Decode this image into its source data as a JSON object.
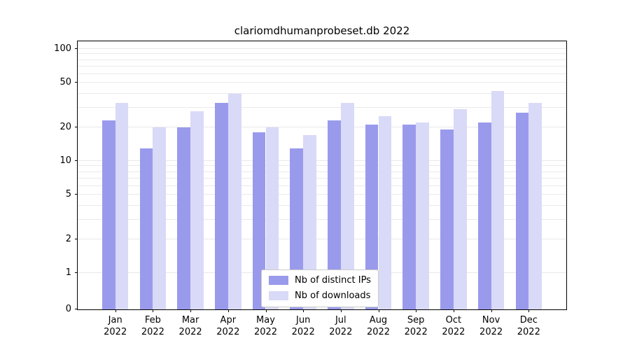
{
  "chart_data": {
    "type": "bar",
    "title": "clariomdhumanprobeset.db 2022",
    "categories": [
      "Jan",
      "Feb",
      "Mar",
      "Apr",
      "May",
      "Jun",
      "Jul",
      "Aug",
      "Sep",
      "Oct",
      "Nov",
      "Dec"
    ],
    "year": "2022",
    "series": [
      {
        "name": "Nb of distinct IPs",
        "color": "#9a9aec",
        "values": [
          23,
          13,
          20,
          33,
          18,
          13,
          23,
          21,
          21,
          19,
          22,
          27
        ]
      },
      {
        "name": "Nb of downloads",
        "color": "#d9d9f8",
        "values": [
          33,
          20,
          28,
          40,
          20,
          17,
          33,
          25,
          22,
          29,
          42,
          33
        ]
      }
    ],
    "yscale": "symlog",
    "ylim": [
      0,
      120
    ],
    "yticks": [
      0,
      1,
      2,
      5,
      10,
      20,
      50,
      100
    ],
    "gridlines": [
      1,
      2,
      3,
      4,
      5,
      6,
      7,
      8,
      9,
      10,
      20,
      30,
      40,
      50,
      60,
      70,
      80,
      90,
      100
    ],
    "grid": true,
    "legend_position": "lower center inside",
    "colors": {
      "axis": "#000000",
      "grid": "#e9e9e9",
      "background": "#ffffff"
    }
  }
}
